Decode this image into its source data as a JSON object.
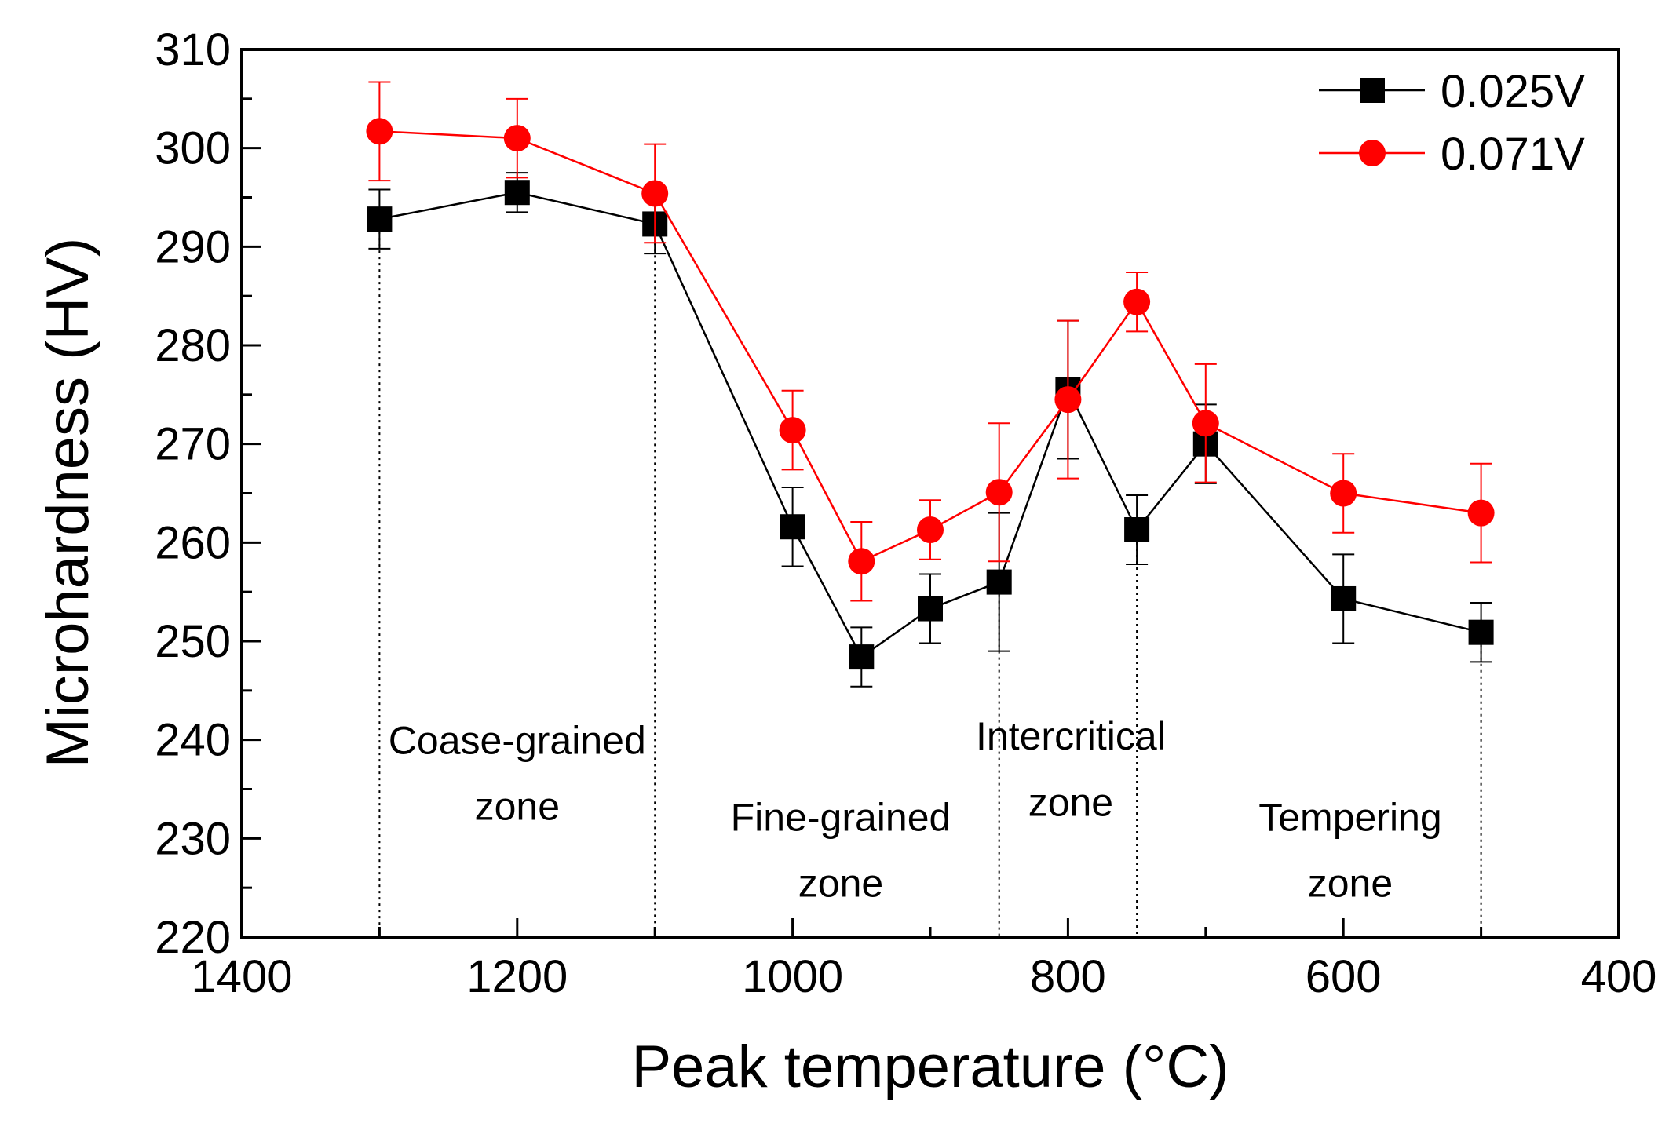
{
  "chart_data": {
    "type": "line",
    "xlabel": "Peak temperature (°C)",
    "ylabel": "Microhardness (HV)",
    "xlim": [
      1400,
      400
    ],
    "ylim": [
      220,
      310
    ],
    "x_reversed": true,
    "xticks": [
      1400,
      1200,
      1000,
      800,
      600,
      400
    ],
    "yticks": [
      220,
      230,
      240,
      250,
      260,
      270,
      280,
      290,
      300,
      310
    ],
    "x": [
      1300,
      1200,
      1100,
      1000,
      950,
      900,
      850,
      800,
      750,
      700,
      600,
      500
    ],
    "series": [
      {
        "name": "0.025V",
        "color": "#000000",
        "marker": "square",
        "values": [
          292.8,
          295.5,
          292.3,
          261.6,
          248.4,
          253.3,
          256.0,
          275.5,
          261.3,
          270.0,
          254.3,
          250.9
        ],
        "errors": [
          3.0,
          2.0,
          3.0,
          4.0,
          3.0,
          3.5,
          7.0,
          7.0,
          3.5,
          4.0,
          4.5,
          3.0
        ]
      },
      {
        "name": "0.071V",
        "color": "#ff0000",
        "marker": "circle",
        "values": [
          301.7,
          301.0,
          295.4,
          271.4,
          258.1,
          261.3,
          265.1,
          274.5,
          284.4,
          272.1,
          265.0,
          263.0
        ],
        "errors": [
          5.0,
          4.0,
          5.0,
          4.0,
          4.0,
          3.0,
          7.0,
          8.0,
          3.0,
          6.0,
          4.0,
          5.0
        ]
      }
    ],
    "zone_dividers": [
      1300,
      1100,
      850,
      750,
      500
    ],
    "zones": [
      {
        "lines": [
          "Coase-grained",
          "zone"
        ],
        "x": 1200,
        "y": [
          238.6,
          231.9
        ]
      },
      {
        "lines": [
          "Fine-grained",
          "zone"
        ],
        "x": 965,
        "y": [
          230.8,
          224.1
        ]
      },
      {
        "lines": [
          "Intercritical",
          "zone"
        ],
        "x": 798,
        "y": [
          239.0,
          232.3
        ]
      },
      {
        "lines": [
          "Tempering",
          "zone"
        ],
        "x": 595,
        "y": [
          230.8,
          224.1
        ]
      }
    ],
    "legend_position": "top-right",
    "grid": false
  }
}
